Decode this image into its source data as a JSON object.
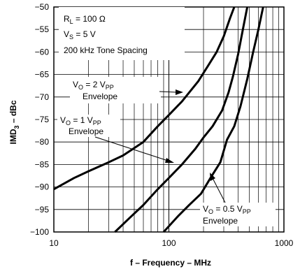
{
  "chart_data": {
    "type": "line",
    "title": "",
    "xlabel": "f – Frequency – MHz",
    "ylabel_main": "IMD",
    "ylabel_sub": "3",
    "ylabel_rest": " – dBc",
    "x_scale": "log",
    "xlim": [
      10,
      1000
    ],
    "ylim": [
      -100,
      -50
    ],
    "grid": true,
    "x_ticks": [
      10,
      100,
      1000
    ],
    "x_tick_labels": [
      "10",
      "100",
      "1000"
    ],
    "y_ticks": [
      -100,
      -95,
      -90,
      -85,
      -80,
      -75,
      -70,
      -65,
      -60,
      -55,
      -50
    ],
    "y_tick_labels": [
      "−100",
      "−95",
      "−90",
      "−85",
      "−80",
      "−75",
      "−70",
      "−65",
      "−60",
      "−55",
      "−50"
    ],
    "conditions": {
      "rl_main": "R",
      "rl_sub": "L",
      "rl_rest": " = 100 Ω",
      "vs_main": "V",
      "vs_sub": "S",
      "vs_rest": " = 5 V",
      "spacing": "200 kHz Tone Spacing"
    },
    "series": [
      {
        "label_main": "V",
        "label_sub": "O",
        "label_mid": " = 2 V",
        "label_sub2": "PP",
        "label_line2": "Envelope",
        "x": [
          10,
          15,
          20,
          30,
          40,
          60,
          80,
          100,
          130,
          180,
          220,
          260,
          300,
          340,
          370
        ],
        "y": [
          -90.5,
          -88,
          -86.5,
          -84.5,
          -83,
          -80,
          -76.5,
          -74,
          -71,
          -66.5,
          -63,
          -60,
          -56.5,
          -52.5,
          -50
        ]
      },
      {
        "label_main": "V",
        "label_sub": "O",
        "label_mid": " = 1 V",
        "label_sub2": "PP",
        "label_line2": "Envelope",
        "x": [
          34,
          45,
          60,
          80,
          100,
          130,
          170,
          200,
          240,
          290,
          330,
          360,
          400,
          440,
          480
        ],
        "y": [
          -100,
          -97,
          -94,
          -90.5,
          -88,
          -85,
          -81.5,
          -79,
          -76.5,
          -73,
          -69,
          -65.5,
          -60.5,
          -55,
          -50
        ]
      },
      {
        "label_main": "V",
        "label_sub": "O",
        "label_mid": " = 0.5 V",
        "label_sub2": "PP",
        "label_line2": "Envelope",
        "x": [
          90,
          120,
          150,
          190,
          230,
          280,
          320,
          370,
          420,
          480,
          540,
          600,
          660
        ],
        "y": [
          -100,
          -96.5,
          -94,
          -91.5,
          -88,
          -84.5,
          -79.5,
          -76.5,
          -72,
          -66,
          -60,
          -55,
          -50
        ]
      }
    ]
  }
}
